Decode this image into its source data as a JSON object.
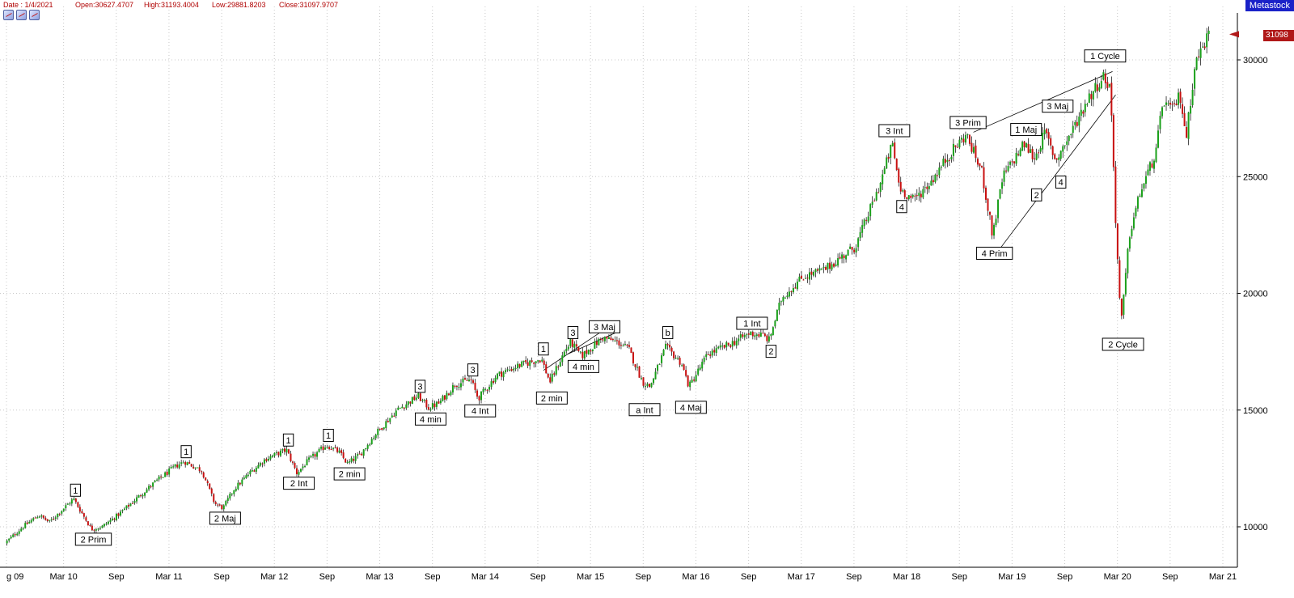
{
  "header": {
    "date": "Date : 1/4/2021",
    "open": "Open:30627.4707",
    "high": "High:31193.4004",
    "low": "Low:29881.8203",
    "close": "Close:31097.9707"
  },
  "brand": "Metastock",
  "last_price_tag": "31098",
  "toolbar_icons": [
    "chart-icon",
    "chart-icon",
    "chart-icon"
  ],
  "colors": {
    "up": "#1aa01a",
    "down": "#c81010",
    "wick": "#000000",
    "grid": "#c8c8c8",
    "label_text": "#000000"
  },
  "chart_data": {
    "type": "candlestick",
    "title": "",
    "xlabel": "",
    "ylabel": "",
    "ylim": [
      9000,
      31500
    ],
    "grid": true,
    "y_ticks": [
      10000,
      15000,
      20000,
      25000,
      30000
    ],
    "y_tick_labels": [
      "10000",
      "15000",
      "20000",
      "25000",
      "30000"
    ],
    "x_ticks": [
      {
        "label": "g 09",
        "t": 2009.625
      },
      {
        "label": "Mar 10",
        "t": 2010.167
      },
      {
        "label": "Sep",
        "t": 2010.667
      },
      {
        "label": "Mar 11",
        "t": 2011.167
      },
      {
        "label": "Sep",
        "t": 2011.667
      },
      {
        "label": "Mar 12",
        "t": 2012.167
      },
      {
        "label": "Sep",
        "t": 2012.667
      },
      {
        "label": "Mar 13",
        "t": 2013.167
      },
      {
        "label": "Sep",
        "t": 2013.667
      },
      {
        "label": "Mar 14",
        "t": 2014.167
      },
      {
        "label": "Sep",
        "t": 2014.667
      },
      {
        "label": "Mar 15",
        "t": 2015.167
      },
      {
        "label": "Sep",
        "t": 2015.667
      },
      {
        "label": "Mar 16",
        "t": 2016.167
      },
      {
        "label": "Sep",
        "t": 2016.667
      },
      {
        "label": "Mar 17",
        "t": 2017.167
      },
      {
        "label": "Sep",
        "t": 2017.667
      },
      {
        "label": "Mar 18",
        "t": 2018.167
      },
      {
        "label": "Sep",
        "t": 2018.667
      },
      {
        "label": "Mar 19",
        "t": 2019.167
      },
      {
        "label": "Sep",
        "t": 2019.667
      },
      {
        "label": "Mar 20",
        "t": 2020.167
      },
      {
        "label": "Sep",
        "t": 2020.667
      },
      {
        "label": "Mar 21",
        "t": 2021.167
      }
    ],
    "price_path": [
      [
        2009.63,
        9300
      ],
      [
        2009.8,
        10000
      ],
      [
        2009.95,
        10500
      ],
      [
        2010.05,
        10200
      ],
      [
        2010.28,
        11200
      ],
      [
        2010.45,
        9900
      ],
      [
        2010.55,
        10000
      ],
      [
        2010.7,
        10500
      ],
      [
        2010.9,
        11300
      ],
      [
        2011.05,
        11900
      ],
      [
        2011.25,
        12600
      ],
      [
        2011.33,
        12800
      ],
      [
        2011.5,
        12400
      ],
      [
        2011.62,
        11000
      ],
      [
        2011.7,
        10800
      ],
      [
        2011.8,
        11600
      ],
      [
        2011.95,
        12300
      ],
      [
        2012.1,
        12900
      ],
      [
        2012.3,
        13300
      ],
      [
        2012.4,
        12300
      ],
      [
        2012.5,
        12800
      ],
      [
        2012.68,
        13500
      ],
      [
        2012.8,
        13200
      ],
      [
        2012.88,
        12700
      ],
      [
        2013.0,
        13100
      ],
      [
        2013.15,
        14000
      ],
      [
        2013.35,
        15000
      ],
      [
        2013.55,
        15600
      ],
      [
        2013.65,
        15100
      ],
      [
        2013.75,
        15300
      ],
      [
        2013.9,
        16100
      ],
      [
        2014.05,
        16300
      ],
      [
        2014.12,
        15500
      ],
      [
        2014.3,
        16500
      ],
      [
        2014.5,
        16900
      ],
      [
        2014.72,
        17200
      ],
      [
        2014.8,
        16200
      ],
      [
        2014.95,
        17600
      ],
      [
        2015.0,
        17900
      ],
      [
        2015.1,
        17300
      ],
      [
        2015.3,
        18100
      ],
      [
        2015.45,
        17900
      ],
      [
        2015.55,
        17600
      ],
      [
        2015.68,
        16200
      ],
      [
        2015.75,
        16000
      ],
      [
        2015.9,
        17700
      ],
      [
        2016.05,
        17000
      ],
      [
        2016.12,
        16000
      ],
      [
        2016.3,
        17400
      ],
      [
        2016.5,
        17800
      ],
      [
        2016.7,
        18300
      ],
      [
        2016.82,
        18200
      ],
      [
        2016.88,
        18000
      ],
      [
        2017.0,
        19800
      ],
      [
        2017.2,
        20700
      ],
      [
        2017.4,
        21000
      ],
      [
        2017.7,
        22000
      ],
      [
        2017.92,
        24500
      ],
      [
        2018.05,
        26400
      ],
      [
        2018.12,
        24500
      ],
      [
        2018.25,
        24000
      ],
      [
        2018.4,
        24700
      ],
      [
        2018.6,
        26000
      ],
      [
        2018.75,
        26800
      ],
      [
        2018.9,
        25200
      ],
      [
        2019.0,
        22500
      ],
      [
        2019.1,
        25000
      ],
      [
        2019.3,
        26400
      ],
      [
        2019.4,
        25800
      ],
      [
        2019.5,
        26900
      ],
      [
        2019.6,
        25700
      ],
      [
        2019.75,
        26900
      ],
      [
        2019.9,
        28300
      ],
      [
        2020.05,
        29300
      ],
      [
        2020.12,
        28800
      ],
      [
        2020.17,
        23000
      ],
      [
        2020.22,
        18600
      ],
      [
        2020.3,
        22500
      ],
      [
        2020.4,
        24300
      ],
      [
        2020.55,
        26000
      ],
      [
        2020.62,
        28300
      ],
      [
        2020.7,
        27800
      ],
      [
        2020.78,
        28500
      ],
      [
        2020.84,
        26700
      ],
      [
        2020.92,
        29800
      ],
      [
        2021.05,
        31100
      ]
    ],
    "trendlines": [
      {
        "from": [
          2014.72,
          16700
        ],
        "to": [
          2015.25,
          18300
        ]
      },
      {
        "from": [
          2014.95,
          17400
        ],
        "to": [
          2015.45,
          18400
        ]
      },
      {
        "from": [
          2018.8,
          26900
        ],
        "to": [
          2020.12,
          29500
        ]
      },
      {
        "from": [
          2019.05,
          21900
        ],
        "to": [
          2020.15,
          28500
        ]
      }
    ],
    "annotations": [
      {
        "text": "1",
        "t": 2010.28,
        "price": 11550
      },
      {
        "text": "2 Prim",
        "t": 2010.45,
        "price": 9450
      },
      {
        "text": "1",
        "t": 2011.33,
        "price": 13200
      },
      {
        "text": "2 Maj",
        "t": 2011.7,
        "price": 10350
      },
      {
        "text": "1",
        "t": 2012.3,
        "price": 13700
      },
      {
        "text": "2 Int",
        "t": 2012.4,
        "price": 11850
      },
      {
        "text": "1",
        "t": 2012.68,
        "price": 13900
      },
      {
        "text": "2 min",
        "t": 2012.88,
        "price": 12250
      },
      {
        "text": "3",
        "t": 2013.55,
        "price": 16000
      },
      {
        "text": "4 min",
        "t": 2013.65,
        "price": 14600
      },
      {
        "text": "3",
        "t": 2014.05,
        "price": 16700
      },
      {
        "text": "4 Int",
        "t": 2014.12,
        "price": 14950
      },
      {
        "text": "1",
        "t": 2014.72,
        "price": 17600
      },
      {
        "text": "2 min",
        "t": 2014.8,
        "price": 15500
      },
      {
        "text": "3",
        "t": 2015.0,
        "price": 18300
      },
      {
        "text": "4 min",
        "t": 2015.1,
        "price": 16850
      },
      {
        "text": "3 Maj",
        "t": 2015.3,
        "price": 18550
      },
      {
        "text": "b",
        "t": 2015.9,
        "price": 18300
      },
      {
        "text": "a Int",
        "t": 2015.68,
        "price": 15000
      },
      {
        "text": "4 Maj",
        "t": 2016.12,
        "price": 15100
      },
      {
        "text": "1 Int",
        "t": 2016.7,
        "price": 18700
      },
      {
        "text": "2",
        "t": 2016.88,
        "price": 17500
      },
      {
        "text": "3 Int",
        "t": 2018.05,
        "price": 26950
      },
      {
        "text": "4",
        "t": 2018.12,
        "price": 23700
      },
      {
        "text": "3 Prim",
        "t": 2018.75,
        "price": 27300
      },
      {
        "text": "4 Prim",
        "t": 2019.0,
        "price": 21700
      },
      {
        "text": "1 Maj",
        "t": 2019.3,
        "price": 27000
      },
      {
        "text": "2",
        "t": 2019.4,
        "price": 24200
      },
      {
        "text": "3 Maj",
        "t": 2019.6,
        "price": 28000
      },
      {
        "text": "4",
        "t": 2019.63,
        "price": 24750
      },
      {
        "text": "1 Cycle",
        "t": 2020.05,
        "price": 30150
      },
      {
        "text": "2 Cycle",
        "t": 2020.22,
        "price": 17800
      }
    ]
  }
}
